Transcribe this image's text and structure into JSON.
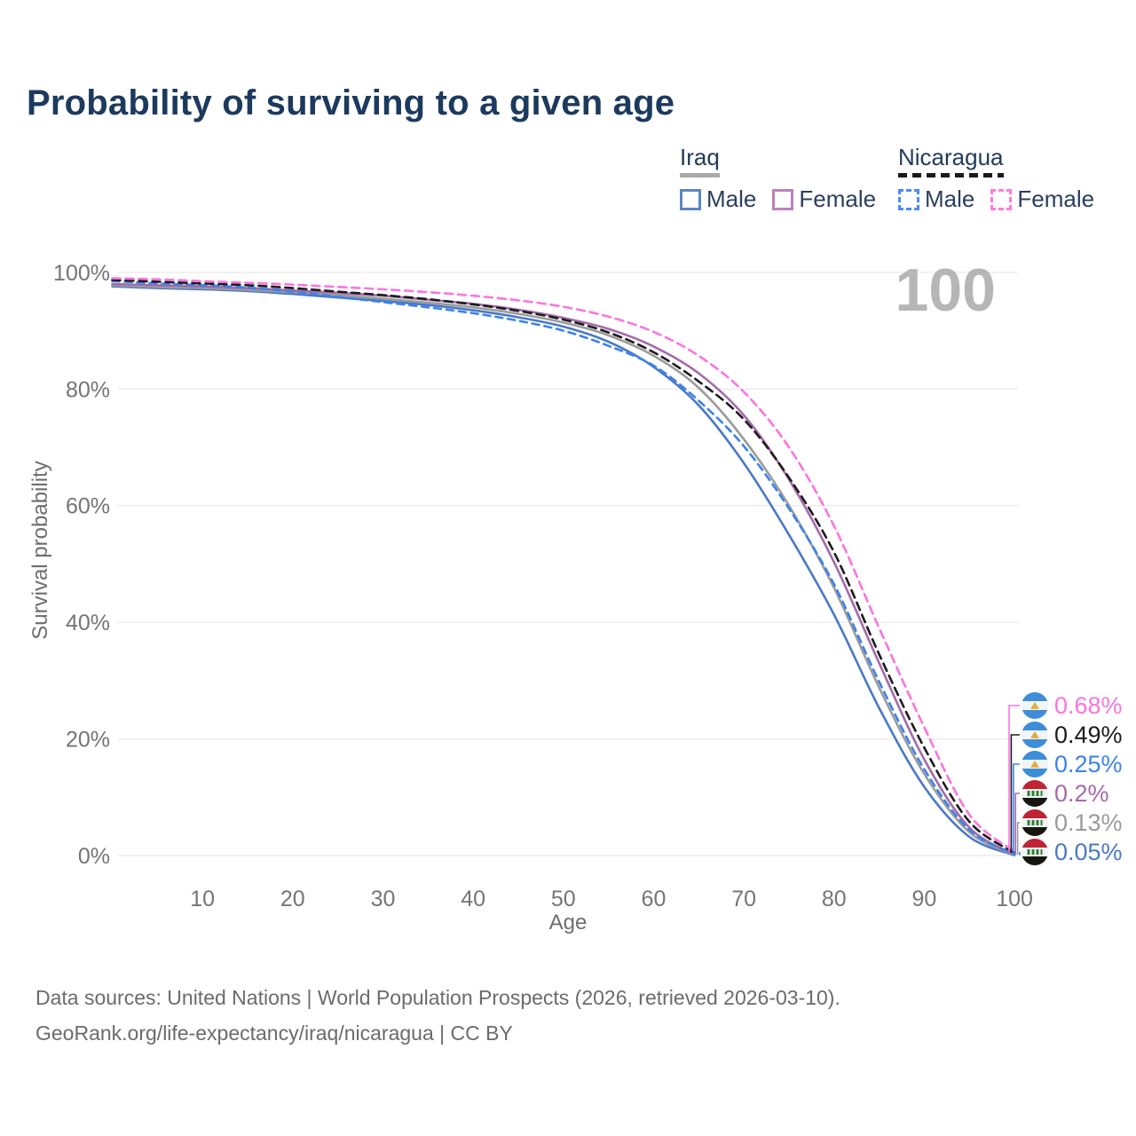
{
  "title": "Probability of surviving to a given age",
  "watermark": "100",
  "legend": {
    "groups": [
      {
        "name": "Iraq",
        "underline": "solid",
        "underline_color": "#a9a9a9",
        "items": [
          {
            "label": "Male",
            "color": "#5b86c8",
            "dash": false
          },
          {
            "label": "Female",
            "color": "#bd80bd",
            "dash": false
          }
        ]
      },
      {
        "name": "Nicaragua",
        "underline": "dashed",
        "underline_color": "#1a1a1a",
        "items": [
          {
            "label": "Male",
            "color": "#4b8bf4",
            "dash": true
          },
          {
            "label": "Female",
            "color": "#ff7ae1",
            "dash": true
          }
        ]
      }
    ]
  },
  "chart_data": {
    "type": "line",
    "title": "Probability of surviving to a given age",
    "xlabel": "Age",
    "ylabel": "Survival probability",
    "xlim": [
      0,
      100
    ],
    "ylim": [
      0,
      100
    ],
    "grid": "horizontal",
    "x_ticks": [
      10,
      20,
      30,
      40,
      50,
      60,
      70,
      80,
      90,
      100
    ],
    "y_ticks": [
      {
        "value": 0,
        "label": "0%"
      },
      {
        "value": 20,
        "label": "20%"
      },
      {
        "value": 40,
        "label": "40%"
      },
      {
        "value": 60,
        "label": "60%"
      },
      {
        "value": 80,
        "label": "80%"
      },
      {
        "value": 100,
        "label": "100%"
      }
    ],
    "ages": [
      0,
      5,
      10,
      15,
      20,
      25,
      30,
      35,
      40,
      45,
      50,
      55,
      60,
      65,
      70,
      75,
      80,
      85,
      90,
      95,
      100
    ],
    "series": [
      {
        "id": "nicaragua-female",
        "name": "Nicaragua Female",
        "color": "#fb74df",
        "dash": "9 6",
        "flag": "nicaragua",
        "end_label": "0.68%",
        "values": [
          99.0,
          98.8,
          98.5,
          98.2,
          97.9,
          97.5,
          97.1,
          96.6,
          96.0,
          95.2,
          94.1,
          92.4,
          89.8,
          85.7,
          79.5,
          70.0,
          56.5,
          39.0,
          22.0,
          7.0,
          0.68
        ]
      },
      {
        "id": "nicaragua-both",
        "name": "Nicaragua Both sexes",
        "color": "#1c1c1c",
        "dash": "9 6",
        "flag": "nicaragua",
        "end_label": "0.49%",
        "values": [
          98.7,
          98.4,
          98.1,
          97.8,
          97.3,
          96.7,
          96.1,
          95.4,
          94.5,
          93.4,
          91.9,
          89.7,
          86.3,
          81.3,
          74.8,
          64.8,
          52.0,
          34.5,
          18.5,
          5.8,
          0.49
        ]
      },
      {
        "id": "nicaragua-male",
        "name": "Nicaragua Male",
        "color": "#3b82ee",
        "dash": "8 6",
        "flag": "nicaragua",
        "end_label": "0.25%",
        "values": [
          98.5,
          98.1,
          97.8,
          97.4,
          96.7,
          95.8,
          94.9,
          94.0,
          93.0,
          91.7,
          90.0,
          87.4,
          84.0,
          78.0,
          70.2,
          59.5,
          46.5,
          29.8,
          14.8,
          4.4,
          0.25
        ]
      },
      {
        "id": "iraq-female",
        "name": "Iraq Female",
        "color": "#a56aaa",
        "dash": null,
        "flag": "iraq",
        "end_label": "0.2%",
        "values": [
          98.0,
          97.8,
          97.6,
          97.3,
          96.9,
          96.5,
          96.0,
          95.3,
          94.6,
          93.6,
          92.2,
          90.3,
          87.3,
          82.7,
          75.5,
          64.5,
          50.3,
          33.0,
          16.5,
          4.8,
          0.2
        ]
      },
      {
        "id": "iraq-both",
        "name": "Iraq Both sexes",
        "color": "#9b9b9b",
        "dash": null,
        "flag": "iraq",
        "end_label": "0.13%",
        "values": [
          97.8,
          97.5,
          97.3,
          97.0,
          96.6,
          96.1,
          95.5,
          94.8,
          94.0,
          92.9,
          91.4,
          89.2,
          85.7,
          80.2,
          71.4,
          60.0,
          45.9,
          28.8,
          14.0,
          4.0,
          0.13
        ]
      },
      {
        "id": "iraq-male",
        "name": "Iraq Male",
        "color": "#4a79c6",
        "dash": null,
        "flag": "iraq",
        "end_label": "0.05%",
        "values": [
          97.6,
          97.3,
          97.1,
          96.8,
          96.3,
          95.7,
          95.1,
          94.4,
          93.5,
          92.3,
          90.7,
          88.1,
          83.8,
          77.2,
          67.3,
          55.0,
          41.3,
          25.3,
          11.8,
          3.2,
          0.05
        ]
      }
    ]
  },
  "footer": {
    "line1": "Data sources: United Nations | World Population Prospects (2026, retrieved 2026-03-10).",
    "line2": "GeoRank.org/life-expectancy/iraq/nicaragua | CC BY"
  }
}
